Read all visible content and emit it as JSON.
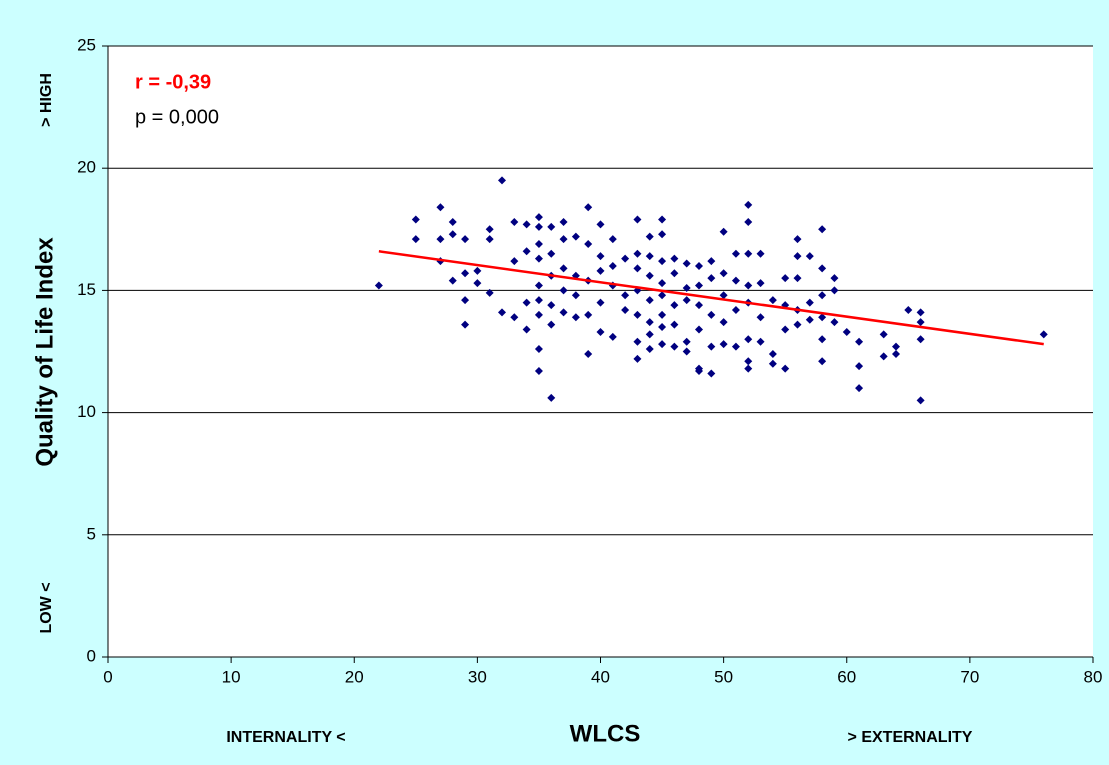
{
  "chart_data": {
    "type": "scatter",
    "y_label": "Quality of Life Index",
    "y_high_label": "> HIGH",
    "y_low_label": "LOW <",
    "x_label": "WLCS",
    "x_low_label": "INTERNALITY <",
    "x_high_label": "> EXTERNALITY",
    "annotations": [
      "r = -0,39",
      "p = 0,000"
    ],
    "annotation_colors": [
      "#ff0000",
      "#000000"
    ],
    "background": "#ccffff",
    "color": "#000080",
    "grid": true,
    "xlim": [
      0,
      80
    ],
    "xticks": [
      0,
      10,
      20,
      30,
      40,
      50,
      60,
      70,
      80
    ],
    "ylim": [
      0,
      25
    ],
    "yticks": [
      0,
      5,
      10,
      15,
      20,
      25
    ],
    "trend_line": {
      "x": [
        22,
        76
      ],
      "y": [
        16.6,
        12.8
      ],
      "color": "#ff0000"
    },
    "x": [
      22,
      25,
      25,
      27,
      27,
      27,
      28,
      28,
      28,
      29,
      29,
      29,
      29,
      30,
      30,
      31,
      31,
      31,
      32,
      32,
      33,
      33,
      33,
      34,
      34,
      34,
      34,
      35,
      35,
      35,
      35,
      35,
      35,
      35,
      35,
      35,
      36,
      36,
      36,
      36,
      36,
      36,
      37,
      37,
      37,
      37,
      37,
      38,
      38,
      38,
      38,
      39,
      39,
      39,
      39,
      39,
      40,
      40,
      40,
      40,
      40,
      41,
      41,
      41,
      41,
      42,
      42,
      42,
      43,
      43,
      43,
      43,
      43,
      43,
      43,
      44,
      44,
      44,
      44,
      44,
      44,
      44,
      45,
      45,
      45,
      45,
      45,
      45,
      45,
      45,
      46,
      46,
      46,
      46,
      46,
      47,
      47,
      47,
      47,
      47,
      48,
      48,
      48,
      48,
      48,
      48,
      49,
      49,
      49,
      49,
      49,
      50,
      50,
      50,
      50,
      50,
      51,
      51,
      51,
      51,
      52,
      52,
      52,
      52,
      52,
      52,
      52,
      52,
      53,
      53,
      53,
      53,
      54,
      54,
      54,
      55,
      55,
      55,
      55,
      56,
      56,
      56,
      56,
      56,
      57,
      57,
      57,
      58,
      58,
      58,
      58,
      58,
      58,
      59,
      59,
      59,
      60,
      61,
      61,
      61,
      63,
      63,
      64,
      64,
      65,
      66,
      66,
      66,
      66,
      76
    ],
    "values": [
      15.2,
      17.9,
      17.1,
      18.4,
      17.1,
      16.2,
      17.8,
      17.3,
      15.4,
      17.1,
      15.7,
      14.6,
      13.6,
      15.8,
      15.3,
      17.5,
      17.1,
      14.9,
      19.5,
      14.1,
      17.8,
      16.2,
      13.9,
      17.7,
      16.6,
      14.5,
      13.4,
      18.0,
      17.6,
      16.9,
      16.3,
      15.2,
      14.6,
      14.0,
      12.6,
      11.7,
      17.6,
      16.5,
      15.6,
      14.4,
      13.6,
      10.6,
      17.8,
      17.1,
      15.9,
      15.0,
      14.1,
      17.2,
      15.6,
      14.8,
      13.9,
      18.4,
      16.9,
      15.4,
      14.0,
      12.4,
      17.7,
      16.4,
      15.8,
      14.5,
      13.3,
      17.1,
      16.0,
      15.2,
      13.1,
      16.3,
      14.8,
      14.2,
      17.9,
      16.5,
      15.9,
      15.0,
      14.0,
      12.9,
      12.2,
      17.2,
      16.4,
      15.6,
      14.6,
      13.7,
      13.2,
      12.6,
      17.9,
      17.3,
      16.2,
      15.3,
      14.8,
      14.0,
      13.5,
      12.8,
      16.3,
      15.7,
      14.4,
      13.6,
      12.7,
      16.1,
      15.1,
      14.6,
      12.9,
      12.5,
      16.0,
      15.2,
      14.4,
      13.4,
      11.8,
      11.7,
      16.2,
      15.5,
      14.0,
      12.7,
      11.6,
      17.4,
      15.7,
      14.8,
      13.7,
      12.8,
      16.5,
      15.4,
      14.2,
      12.7,
      18.5,
      17.8,
      16.5,
      15.2,
      14.5,
      13.0,
      12.1,
      11.8,
      16.5,
      15.3,
      13.9,
      12.9,
      14.6,
      12.4,
      12.0,
      15.5,
      14.4,
      13.4,
      11.8,
      17.1,
      16.4,
      15.5,
      14.2,
      13.6,
      16.4,
      14.5,
      13.8,
      17.5,
      15.9,
      14.8,
      13.9,
      13.0,
      12.1,
      15.5,
      15.0,
      13.7,
      13.3,
      12.9,
      11.9,
      11.0,
      13.2,
      12.3,
      12.7,
      12.4,
      14.2,
      14.1,
      13.7,
      13.0,
      10.5,
      13.2
    ]
  }
}
